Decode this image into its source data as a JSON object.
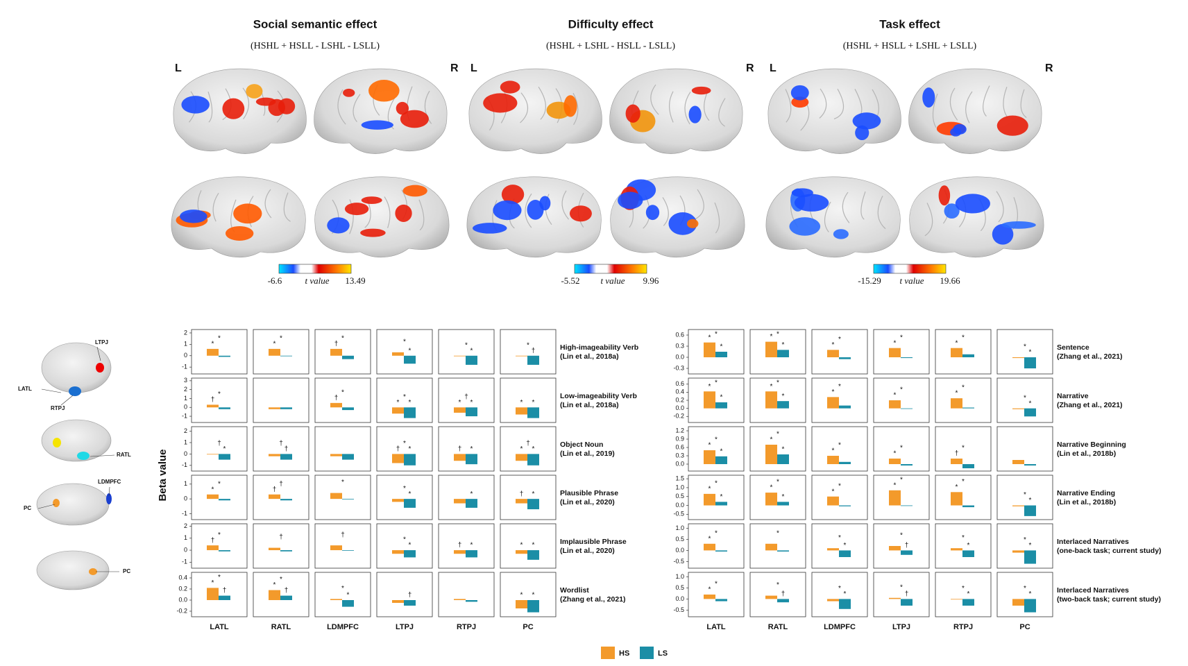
{
  "brain_maps": [
    {
      "title": "Social semantic effect",
      "contrast": "(HSHL + HSLL - LSHL - LSLL)",
      "hemispheres": [
        "L",
        "R"
      ],
      "colorbar": {
        "min": -6.6,
        "max": 13.49,
        "label": "t value"
      }
    },
    {
      "title": "Difficulty effect",
      "contrast": "(HSHL + LSHL - HSLL - LSLL)",
      "hemispheres": [
        "L",
        "R"
      ],
      "colorbar": {
        "min": -5.52,
        "max": 9.96,
        "label": "t value"
      }
    },
    {
      "title": "Task effect",
      "contrast": "(HSHL + HSLL + LSHL + LSLL)",
      "hemispheres": [
        "L",
        "R"
      ],
      "colorbar": {
        "min": -15.29,
        "max": 19.66,
        "label": "t value"
      }
    }
  ],
  "roi_labels": [
    "LTPJ",
    "LATL",
    "RTPJ",
    "RATL",
    "LDMPFC",
    "PC",
    "PC"
  ],
  "legend": [
    {
      "name": "HS",
      "color": "#f39a2b"
    },
    {
      "name": "LS",
      "color": "#1b8ea6"
    }
  ],
  "chart_data": [
    {
      "type": "bar",
      "ylabel": "Beta value",
      "categories": [
        "LATL",
        "RATL",
        "LDMPFC",
        "LTPJ",
        "RTPJ",
        "PC"
      ],
      "rows": [
        {
          "title": "High-imageability Verb",
          "subtitle": "(Lin et al., 2018a)",
          "ylim": [
            -1.6,
            2.3
          ],
          "yticks": [
            -1,
            0,
            1,
            2
          ],
          "values": [
            [
              0.6,
              0.6,
              0.6,
              0.3,
              0,
              0
            ],
            [
              -0.1,
              0,
              -0.3,
              -0.7,
              -0.8,
              -0.8
            ]
          ],
          "sig": [
            [
              "*",
              "*",
              null
            ],
            [
              "*",
              "*",
              null
            ],
            [
              "†",
              "*",
              null
            ],
            [
              null,
              "*",
              "*"
            ],
            [
              null,
              "*",
              "*"
            ],
            [
              null,
              "*",
              "†"
            ]
          ]
        },
        {
          "title": "Low-imageability Verb",
          "subtitle": "(Lin et al., 2018a)",
          "ylim": [
            -1.7,
            3.3
          ],
          "yticks": [
            -1,
            0,
            1,
            2,
            3
          ],
          "values": [
            [
              0.3,
              -0.2,
              0.5,
              -0.7,
              -0.6,
              -0.8
            ],
            [
              -0.2,
              -0.2,
              -0.3,
              -1.2,
              -1,
              -1.2
            ]
          ],
          "sig": [
            [
              "†",
              "*",
              null
            ],
            [
              null,
              null,
              null
            ],
            [
              "†",
              "*",
              null
            ],
            [
              "*",
              "*",
              "*"
            ],
            [
              "*",
              "†",
              "*"
            ],
            [
              "*",
              null,
              "*"
            ]
          ]
        },
        {
          "title": "Object Noun",
          "subtitle": "(Lin et al., 2019)",
          "ylim": [
            -1.5,
            2.4
          ],
          "yticks": [
            -1,
            0,
            1,
            2
          ],
          "values": [
            [
              0,
              -0.2,
              -0.2,
              -0.8,
              -0.6,
              -0.6
            ],
            [
              -0.5,
              -0.5,
              -0.5,
              -1,
              -0.9,
              -1
            ]
          ],
          "sig": [
            [
              null,
              "†",
              "*"
            ],
            [
              null,
              "†",
              "†"
            ],
            [
              null,
              null,
              null
            ],
            [
              "†",
              "*",
              "*"
            ],
            [
              "†",
              null,
              "*"
            ],
            [
              "*",
              "†",
              "*"
            ]
          ]
        },
        {
          "title": "Plausible Phrase",
          "subtitle": "(Lin et al., 2020)",
          "ylim": [
            -1.4,
            1.6
          ],
          "yticks": [
            -1,
            0,
            1
          ],
          "values": [
            [
              0.3,
              0.3,
              0.4,
              -0.2,
              -0.3,
              -0.3
            ],
            [
              -0.1,
              -0.1,
              0,
              -0.6,
              -0.6,
              -0.7
            ]
          ],
          "sig": [
            [
              "*",
              "*",
              null
            ],
            [
              "†",
              "†",
              null
            ],
            [
              null,
              "*",
              null
            ],
            [
              null,
              "*",
              "*"
            ],
            [
              null,
              null,
              "*"
            ],
            [
              "†",
              null,
              "*"
            ]
          ]
        },
        {
          "title": "Implausible Phrase",
          "subtitle": "(Lin et al., 2020)",
          "ylim": [
            -1.5,
            2.2
          ],
          "yticks": [
            -1,
            0,
            1,
            2
          ],
          "values": [
            [
              0.4,
              0.2,
              0.4,
              -0.3,
              -0.3,
              -0.3
            ],
            [
              -0.1,
              -0.1,
              0,
              -0.6,
              -0.6,
              -0.8
            ]
          ],
          "sig": [
            [
              "†",
              "*",
              null
            ],
            [
              null,
              "†",
              null
            ],
            [
              null,
              "†",
              null
            ],
            [
              null,
              "*",
              "*"
            ],
            [
              "†",
              null,
              "*"
            ],
            [
              "*",
              null,
              "*"
            ]
          ]
        },
        {
          "title": "Wordlist",
          "subtitle": "(Zhang et al., 2021)",
          "ylim": [
            -0.3,
            0.5
          ],
          "yticks": [
            -0.2,
            {
              "value": 0,
              "label": "0.0"
            },
            0.2,
            0.4
          ],
          "values": [
            [
              0.22,
              0.18,
              0.02,
              -0.05,
              0.02,
              -0.15
            ],
            [
              0.08,
              0.08,
              -0.12,
              -0.1,
              -0.03,
              -0.22
            ]
          ],
          "sig": [
            [
              "*",
              "*",
              "†"
            ],
            [
              "*",
              "*",
              "†"
            ],
            [
              null,
              "*",
              "*"
            ],
            [
              null,
              null,
              "†"
            ],
            [
              null,
              null,
              null
            ],
            [
              "*",
              null,
              "*"
            ]
          ]
        }
      ]
    },
    {
      "type": "bar",
      "categories": [
        "LATL",
        "RATL",
        "LDMPFC",
        "LTPJ",
        "RTPJ",
        "PC"
      ],
      "rows": [
        {
          "title": "Sentence",
          "subtitle": "(Zhang et al., 2021)",
          "ylim": [
            -0.45,
            0.75
          ],
          "yticks": [
            -0.3,
            {
              "value": 0,
              "label": "0.0"
            },
            0.3,
            0.6
          ],
          "values": [
            [
              0.4,
              0.42,
              0.2,
              0.25,
              0.25,
              -0.02
            ],
            [
              0.15,
              0.2,
              -0.05,
              -0.02,
              0.08,
              -0.3
            ]
          ],
          "sig": [
            [
              "*",
              "*",
              "*"
            ],
            [
              "*",
              "*",
              "*"
            ],
            [
              "*",
              "*",
              null
            ],
            [
              "*",
              "*",
              null
            ],
            [
              "*",
              "*",
              null
            ],
            [
              null,
              "*",
              "*"
            ]
          ]
        },
        {
          "title": "Narrative",
          "subtitle": "(Zhang et al., 2021)",
          "ylim": [
            -0.35,
            0.75
          ],
          "yticks": [
            -0.2,
            {
              "value": 0,
              "label": "0.0"
            },
            0.2,
            0.4,
            0.6
          ],
          "values": [
            [
              0.42,
              0.42,
              0.28,
              0.2,
              0.25,
              -0.02
            ],
            [
              0.15,
              0.18,
              0.07,
              0,
              0.02,
              -0.2
            ]
          ],
          "sig": [
            [
              "*",
              "*",
              "*"
            ],
            [
              "*",
              "*",
              "*"
            ],
            [
              "*",
              "*",
              null
            ],
            [
              "*",
              "*",
              null
            ],
            [
              "*",
              "*",
              null
            ],
            [
              null,
              "*",
              "*"
            ]
          ]
        },
        {
          "title": "Narrative Beginning",
          "subtitle": "(Lin et al., 2018b)",
          "ylim": [
            -0.25,
            1.35
          ],
          "yticks": [
            {
              "value": 0,
              "label": "0.0"
            },
            0.3,
            0.6,
            0.9,
            1.2
          ],
          "values": [
            [
              0.5,
              0.7,
              0.3,
              0.2,
              0.2,
              0.15
            ],
            [
              0.28,
              0.35,
              0.08,
              -0.05,
              -0.15,
              -0.05
            ]
          ],
          "sig": [
            [
              "*",
              "*",
              "*"
            ],
            [
              "*",
              "*",
              "*"
            ],
            [
              "*",
              "*",
              null
            ],
            [
              "*",
              "*",
              null
            ],
            [
              "†",
              "*",
              null
            ],
            [
              null,
              null,
              null
            ]
          ]
        },
        {
          "title": "Narrative Ending",
          "subtitle": "(Lin et al., 2018b)",
          "ylim": [
            -0.8,
            1.7
          ],
          "yticks": [
            -0.5,
            {
              "value": 0,
              "label": "0.0"
            },
            0.5,
            {
              "value": 1,
              "label": "1.0"
            },
            1.5
          ],
          "values": [
            [
              0.65,
              0.72,
              0.5,
              0.85,
              0.75,
              -0.05
            ],
            [
              0.2,
              0.2,
              -0.05,
              0,
              -0.1,
              -0.6
            ]
          ],
          "sig": [
            [
              "*",
              "*",
              "*"
            ],
            [
              "*",
              "*",
              "*"
            ],
            [
              "*",
              "*",
              null
            ],
            [
              "*",
              "*",
              null
            ],
            [
              "*",
              "*",
              null
            ],
            [
              null,
              "*",
              "*"
            ]
          ]
        },
        {
          "title": "Interlaced Narratives",
          "subtitle": "(one-back task; current study)",
          "ylim": [
            -0.8,
            1.2
          ],
          "yticks": [
            -0.5,
            {
              "value": 0,
              "label": "0.0"
            },
            0.5,
            {
              "value": 1,
              "label": "1.0"
            }
          ],
          "values": [
            [
              0.3,
              0.3,
              0.1,
              0.2,
              0.1,
              -0.1
            ],
            [
              -0.05,
              -0.05,
              -0.3,
              -0.2,
              -0.3,
              -0.6
            ]
          ],
          "sig": [
            [
              "*",
              "*",
              null
            ],
            [
              null,
              "*",
              null
            ],
            [
              null,
              "*",
              "*"
            ],
            [
              null,
              "*",
              "†"
            ],
            [
              null,
              "*",
              "*"
            ],
            [
              null,
              "*",
              "*"
            ]
          ]
        },
        {
          "title": "Interlaced Narratives",
          "subtitle": "(two-back task; current study)",
          "ylim": [
            -0.8,
            1.2
          ],
          "yticks": [
            -0.5,
            {
              "value": 0,
              "label": "0.0"
            },
            0.5,
            {
              "value": 1,
              "label": "1.0"
            }
          ],
          "values": [
            [
              0.2,
              0.15,
              -0.1,
              0.05,
              0,
              -0.3
            ],
            [
              -0.1,
              -0.15,
              -0.45,
              -0.3,
              -0.3,
              -0.6
            ]
          ],
          "sig": [
            [
              "*",
              "*",
              null
            ],
            [
              null,
              "*",
              "†"
            ],
            [
              null,
              "*",
              "*"
            ],
            [
              null,
              "*",
              "†"
            ],
            [
              null,
              "*",
              "*"
            ],
            [
              null,
              "*",
              "*"
            ]
          ]
        }
      ]
    }
  ]
}
